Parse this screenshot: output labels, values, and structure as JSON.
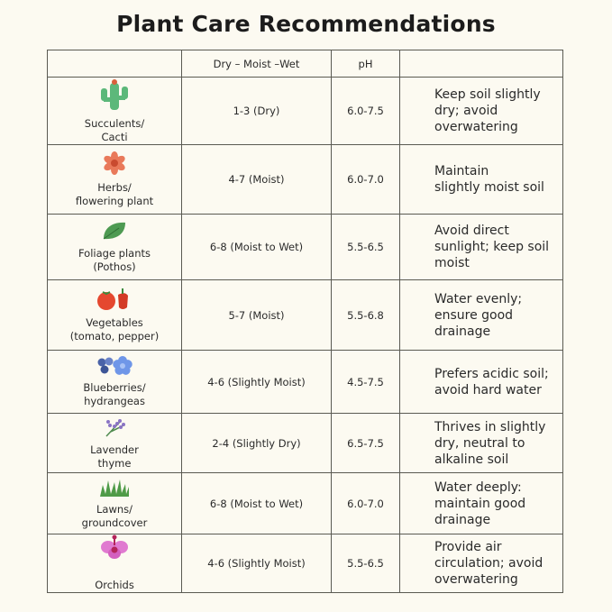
{
  "title": "Plant Care Recommendations",
  "headers": {
    "plant": "",
    "moisture": "Dry –  Moist –Wet",
    "ph": "pH",
    "notes": ""
  },
  "rows": [
    {
      "icon": "cactus-icon",
      "plant": [
        "Succulents/",
        "Cacti"
      ],
      "moisture": "1-3 (Dry)",
      "ph": "6.0-7.5",
      "notes": [
        "Keep soil slightly",
        "dry; avoid",
        "overwatering"
      ]
    },
    {
      "icon": "flower-icon",
      "plant": [
        "Herbs/",
        "flowering plant"
      ],
      "moisture": "4-7 (Moist)",
      "ph": "6.0-7.0",
      "notes": [
        "Maintain",
        "slightly moist soil"
      ]
    },
    {
      "icon": "leaf-icon",
      "plant": [
        "Foliage plants",
        "(Pothos)"
      ],
      "moisture": "6-8 (Moist to Wet)",
      "ph": "5.5-6.5",
      "notes": [
        "Avoid direct",
        "sunlight; keep soil",
        "moist"
      ]
    },
    {
      "icon": "tomato-pepper-icon",
      "plant": [
        "Vegetables",
        "(tomato, pepper)"
      ],
      "moisture": "5-7 (Moist)",
      "ph": "5.5-6.8",
      "notes": [
        "Water evenly;",
        "ensure good",
        "drainage"
      ]
    },
    {
      "icon": "blueberry-hydrangea-icon",
      "plant": [
        "Blueberries/",
        "hydrangeas"
      ],
      "moisture": "4-6 (Slightly Moist)",
      "ph": "4.5-7.5",
      "notes": [
        "Prefers acidic soil;",
        "avoid hard water"
      ]
    },
    {
      "icon": "lavender-icon",
      "plant": [
        "Lavender",
        "thyme"
      ],
      "moisture": "2-4 (Slightly Dry)",
      "ph": "6.5-7.5",
      "notes": [
        "Thrives in slightly",
        "dry, neutral to",
        "alkaline soil"
      ]
    },
    {
      "icon": "grass-icon",
      "plant": [
        "Lawns/",
        "groundcover"
      ],
      "moisture": "6-8 (Moist to Wet)",
      "ph": "6.0-7.0",
      "notes": [
        "Water deeply:",
        "maintain good",
        "drainage"
      ]
    },
    {
      "icon": "orchid-icon",
      "plant": [
        "",
        "Orchids"
      ],
      "moisture": "4-6 (Slightly Moist)",
      "ph": "5.5-6.5",
      "notes": [
        "Provide air",
        "circulation; avoid",
        "overwatering"
      ]
    }
  ]
}
